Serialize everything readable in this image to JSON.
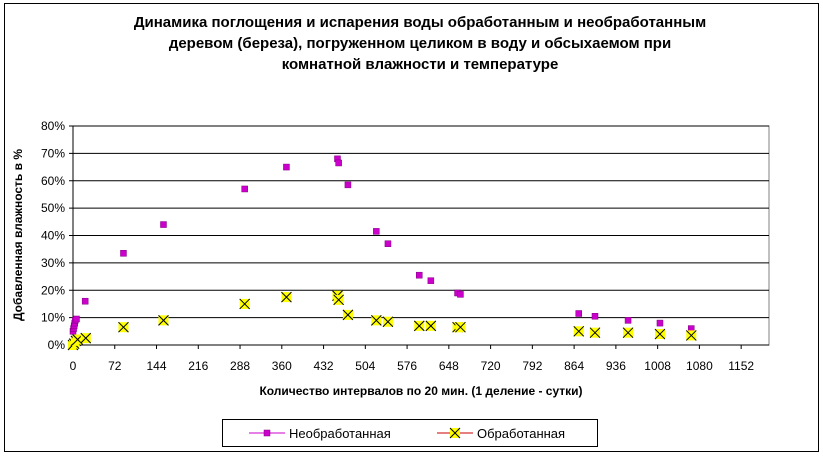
{
  "chart_data": {
    "type": "scatter",
    "title": "Динамика поглощения и испарения воды обработанным и необработанным деревом (береза), погруженном целиком в воду и обсыхаемом при комнатной влажности и температуре",
    "title_lines": [
      "Динамика поглощения и испарения воды обработанным и необработанным",
      "деревом (береза), погруженном целиком в воду и обсыхаемом при",
      "комнатной влажности и температуре"
    ],
    "xlabel": "Количество интервалов по 20 мин. (1 деление - сутки)",
    "ylabel": "Добавленная влажность в %",
    "xlim": [
      0,
      1200
    ],
    "ylim": [
      0,
      80
    ],
    "x_ticks": [
      0,
      72,
      144,
      216,
      288,
      360,
      432,
      504,
      576,
      648,
      720,
      792,
      864,
      936,
      1008,
      1080,
      1152
    ],
    "y_ticks": [
      0,
      10,
      20,
      30,
      40,
      50,
      60,
      70,
      80
    ],
    "y_tick_labels": [
      "0%",
      "10%",
      "20%",
      "30%",
      "40%",
      "50%",
      "60%",
      "70%",
      "80%"
    ],
    "grid": "horizontal",
    "legend_position": "bottom",
    "series": [
      {
        "name": "Необработанная",
        "color": "#cc00cc",
        "marker": "square",
        "x": [
          0,
          1,
          2,
          3,
          4,
          6,
          21,
          87,
          156,
          296,
          368,
          456,
          458,
          474,
          523,
          543,
          597,
          617,
          663,
          668,
          872,
          900,
          957,
          1012,
          1066
        ],
        "y": [
          5,
          6,
          7,
          8,
          9,
          9.5,
          16,
          33.5,
          44,
          57,
          65,
          68,
          66.5,
          58.5,
          41.5,
          37,
          25.5,
          23.5,
          19,
          18.5,
          11.5,
          10.5,
          9,
          8,
          6
        ]
      },
      {
        "name": "Обработанная",
        "color": "#ffff00",
        "marker": "x",
        "x": [
          0,
          2,
          5,
          8,
          22,
          87,
          156,
          296,
          368,
          456,
          458,
          474,
          523,
          543,
          597,
          617,
          663,
          668,
          872,
          900,
          957,
          1012,
          1066
        ],
        "y": [
          0,
          0.5,
          1.5,
          2,
          2.5,
          6.5,
          9,
          15,
          17.5,
          18,
          16.5,
          11,
          9,
          8.5,
          7,
          7,
          6.5,
          6.5,
          5,
          4.5,
          4.5,
          4,
          3.5
        ]
      }
    ]
  }
}
